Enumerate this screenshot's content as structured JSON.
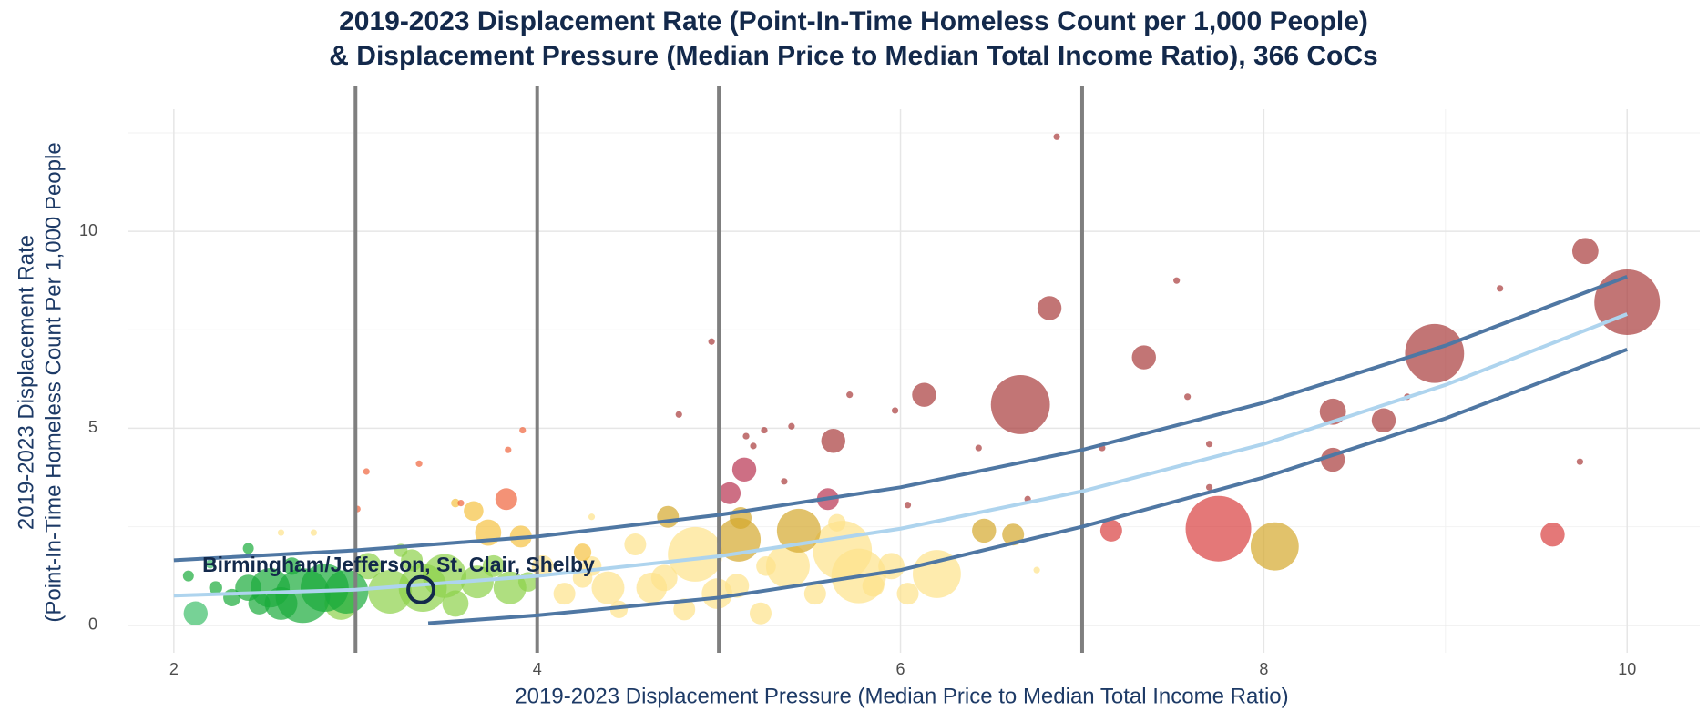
{
  "chart_data": {
    "type": "scatter",
    "title": [
      "2019-2023 Displacement Rate (Point-In-Time Homeless Count per 1,000 People)",
      "& Displacement Pressure (Median Price to Median Total Income Ratio), 366 CoCs"
    ],
    "x_label": "2019-2023 Displacement Pressure (Median Price to Median Total Income Ratio)",
    "y_label": [
      "2019-2023 Displacement Rate",
      "(Point-In-Time Homeless Count Per 1,000 People"
    ],
    "xlim": [
      1.75,
      10.4
    ],
    "ylim": [
      -0.7,
      13.1
    ],
    "xticks": [
      2,
      4,
      6,
      8,
      10
    ],
    "yticks": [
      0,
      5,
      10
    ],
    "minor_xticks": [
      3,
      5,
      7,
      9
    ],
    "minor_yticks": [
      2.5,
      7.5,
      12.5
    ],
    "grid": true,
    "vlines": [
      3,
      4,
      5,
      7
    ],
    "vline_color": "#7f7f7f",
    "series": [
      {
        "color": "#fde28a",
        "x": [
          4.87,
          5.68,
          5.77,
          6.2,
          5.38,
          4.39,
          4.63,
          4.81,
          4.45,
          5.23,
          4.15,
          5.95,
          5.53,
          4.03,
          4.99,
          4.3,
          4.54,
          5.26,
          5.65,
          6.04,
          4.7,
          5.1,
          4.25,
          5.85,
          2.59,
          2.77,
          4.3,
          6.75
        ],
        "y": [
          1.8,
          1.9,
          1.25,
          1.3,
          1.5,
          0.95,
          0.95,
          0.4,
          0.4,
          0.3,
          0.8,
          1.5,
          0.8,
          1.5,
          0.8,
          1.5,
          2.05,
          1.5,
          2.6,
          0.8,
          1.2,
          1.0,
          1.2,
          1.0,
          2.35,
          2.35,
          2.75,
          1.4
        ],
        "sizes": [
          25,
          27,
          25,
          22,
          20,
          15,
          14,
          10,
          8,
          10,
          10,
          12,
          10,
          10,
          14,
          9,
          10,
          9,
          8,
          10,
          12,
          11,
          9,
          10,
          3,
          3,
          3,
          3
        ]
      },
      {
        "color": "#f5c242",
        "x": [
          3.73,
          3.91,
          3.65,
          4.25,
          3.55
        ],
        "y": [
          2.35,
          2.25,
          2.9,
          1.85,
          3.1
        ],
        "sizes": [
          12,
          10,
          9,
          8,
          4
        ]
      },
      {
        "color": "#8dd14a",
        "x": [
          3.37,
          3.49,
          3.19,
          3.67,
          3.85,
          3.07,
          3.31,
          3.76,
          3.55,
          2.92,
          3.95,
          3.25
        ],
        "y": [
          0.95,
          1.25,
          0.85,
          1.1,
          0.95,
          1.5,
          1.65,
          1.5,
          0.55,
          0.55,
          1.1,
          1.9
        ],
        "sizes": [
          22,
          20,
          20,
          15,
          15,
          12,
          10,
          10,
          12,
          15,
          9,
          6
        ]
      },
      {
        "color": "#1aab3a",
        "x": [
          2.71,
          2.83,
          2.53,
          2.59,
          2.41,
          2.95,
          2.47,
          2.32,
          2.23,
          2.08,
          2.41,
          2.65
        ],
        "y": [
          0.75,
          0.95,
          0.95,
          0.55,
          0.95,
          0.85,
          0.55,
          0.7,
          0.95,
          1.25,
          1.95,
          1.5
        ],
        "sizes": [
          25,
          22,
          18,
          15,
          12,
          20,
          10,
          8,
          6,
          5,
          5,
          8
        ]
      },
      {
        "color": "#3dbf6a",
        "x": [
          2.12,
          2.2
        ],
        "y": [
          0.3,
          1.55
        ],
        "sizes": [
          11,
          4
        ]
      },
      {
        "color": "#d4a82c",
        "x": [
          5.44,
          8.06,
          6.46,
          6.62,
          4.72,
          5.12,
          5.11
        ],
        "y": [
          2.4,
          2.0,
          2.4,
          2.3,
          2.75,
          2.72,
          2.17
        ],
        "sizes": [
          20,
          22,
          11,
          10,
          10,
          10,
          20
        ]
      },
      {
        "color": "#f0643c",
        "x": [
          3.83,
          3.06,
          3.35,
          3.92,
          3.84,
          3.58,
          3.01
        ],
        "y": [
          3.2,
          3.9,
          4.1,
          4.95,
          4.45,
          3.1,
          2.95
        ],
        "sizes": [
          10,
          3,
          3,
          3,
          3,
          3,
          3
        ]
      },
      {
        "color": "#d93f3f",
        "x": [
          7.16,
          7.75,
          9.59
        ],
        "y": [
          2.4,
          2.45,
          2.3
        ],
        "sizes": [
          10,
          30,
          11
        ]
      },
      {
        "color": "#b83250",
        "x": [
          5.6,
          5.14,
          5.06
        ],
        "y": [
          3.2,
          3.95,
          3.35
        ],
        "sizes": [
          10,
          11,
          10
        ]
      },
      {
        "color": "#a83a3a",
        "x": [
          10.0,
          9.77,
          8.94,
          6.82,
          6.66,
          7.34,
          6.13,
          8.38,
          8.38,
          8.66,
          5.63,
          6.86,
          7.52,
          9.3,
          4.96,
          4.78,
          5.4,
          5.72,
          5.97,
          6.43,
          7.11,
          7.58,
          8.79,
          9.74,
          7.7,
          5.15,
          5.19,
          5.25,
          5.36,
          6.04,
          6.7,
          7.7
        ],
        "y": [
          8.2,
          9.5,
          6.9,
          8.05,
          5.6,
          6.8,
          5.85,
          5.42,
          4.2,
          5.2,
          4.68,
          12.4,
          8.75,
          8.55,
          7.2,
          5.35,
          5.05,
          5.85,
          5.45,
          4.5,
          4.5,
          5.8,
          5.8,
          4.15,
          4.6,
          4.8,
          4.55,
          4.95,
          3.65,
          3.05,
          3.2,
          3.5
        ],
        "sizes": [
          30,
          12,
          27,
          11,
          27,
          11,
          11,
          12,
          11,
          11,
          11,
          3,
          3,
          3,
          3,
          3,
          3,
          3,
          3,
          3,
          3,
          3,
          3,
          3,
          3,
          3,
          3,
          3,
          3,
          3,
          3,
          3
        ]
      }
    ],
    "lines": [
      {
        "color": "#4f77a3",
        "x": [
          2,
          3,
          4,
          5,
          6,
          7,
          8,
          9,
          10
        ],
        "y": [
          1.65,
          1.9,
          2.25,
          2.8,
          3.5,
          4.45,
          5.65,
          7.1,
          8.85
        ]
      },
      {
        "color": "#aed4ee",
        "x": [
          2,
          3,
          4,
          5,
          6,
          7,
          8,
          9,
          10
        ],
        "y": [
          0.75,
          0.9,
          1.25,
          1.75,
          2.45,
          3.4,
          4.6,
          6.1,
          7.9
        ]
      },
      {
        "color": "#4f77a3",
        "x": [
          3.4,
          4,
          5,
          6,
          7,
          8,
          9,
          10
        ],
        "y": [
          0.05,
          0.25,
          0.7,
          1.4,
          2.5,
          3.75,
          5.25,
          7.0
        ]
      }
    ],
    "highlight": {
      "x": 3.36,
      "y": 0.9,
      "label": "Birmingham/Jefferson, St. Clair, Shelby",
      "color": "#13294b"
    }
  }
}
